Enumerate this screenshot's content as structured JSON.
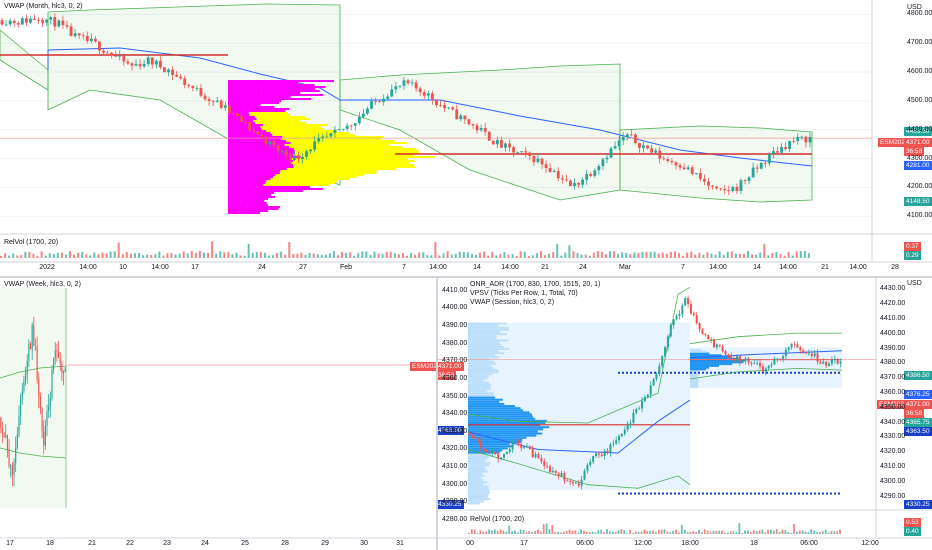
{
  "colors": {
    "up": "#26a69a",
    "down": "#ef5350",
    "vwap": "#2962ff",
    "band": "#4caf50",
    "vp_up": "#ffff00",
    "vp_down": "#ff00ff",
    "vpsv_light": "#bbdefb",
    "vpsv_dark": "#2196f3",
    "poc": "#d32f2f",
    "blue_dots": "#1a3fc7",
    "grid": "#f0f3fa",
    "badge_red": "#ef5350",
    "badge_green": "#26a69a",
    "badge_blue": "#2962ff",
    "badge_dark": "#131722"
  },
  "top": {
    "indicator": "VWAP (Month, hlc3, 0, 2)",
    "currency": "USD",
    "y_ticks": [
      "4800.00",
      "4700.00",
      "4600.00",
      "4500.00",
      "4400.00",
      "4300.00",
      "4200.00",
      "4100.00"
    ],
    "x_ticks": [
      "2022",
      "14:00",
      "10",
      "14:00",
      "17",
      "24",
      "27",
      "Feb",
      "7",
      "14:00",
      "14",
      "14:00",
      "21",
      "24",
      "Mar",
      "7",
      "14:00",
      "14",
      "14:00",
      "21",
      "14:00",
      "28"
    ],
    "badges": {
      "band_upper": "4453.50",
      "symbol": "ESM2022",
      "price": "4371.00",
      "countdown": "36:58",
      "vwap": "4281.00",
      "band_lower": "4148.50"
    },
    "relvol": {
      "label": "RelVol (1700, 20)",
      "value_red": "0.37",
      "value_green": "0.29"
    }
  },
  "bottom_left": {
    "indicator": "VWAP (Week, hlc3, 0, 2)",
    "x_ticks": [
      "17",
      "18",
      "21",
      "22",
      "23",
      "24",
      "25",
      "28",
      "29",
      "30",
      "31"
    ]
  },
  "bottom_right": {
    "indicators": [
      "ONR_ADR (1700, 830, 1700, 1515, 20, 1)",
      "VPSV (Ticks Per Row, 1, Total, 70)",
      "VWAP (Session, hlc3, 0, 2)"
    ],
    "currency": "USD",
    "y_ticks_left": [
      "4410.00",
      "4400.00",
      "4390.00",
      "4380.00",
      "4370.00",
      "4360.00",
      "4350.00",
      "4340.00",
      "4330.00",
      "4320.00",
      "4310.00",
      "4300.00",
      "4290.00",
      "4280.00"
    ],
    "y_ticks_right": [
      "4430.00",
      "4420.00",
      "4410.00",
      "4400.00",
      "4390.00",
      "4380.00",
      "4370.00",
      "4360.00",
      "4350.00",
      "4340.00",
      "4330.00",
      "4320.00",
      "4310.00",
      "4300.00",
      "4290.00"
    ],
    "x_ticks": [
      "00",
      "17",
      "06:00",
      "12:00",
      "18:00",
      "18",
      "06:00",
      "12:00"
    ],
    "left_badges": {
      "symbol": "ESM2022",
      "price": "4371.00",
      "countdown": "36:58"
    },
    "badges": {
      "band_upper": "4386.50",
      "vwap": "4376.25",
      "symbol": "ESM2022",
      "price": "4371.00",
      "countdown": "36:58",
      "band_lower": "4365.75",
      "dots": "4363.50",
      "bottom_dots": "4330.25"
    },
    "relvol": {
      "label": "RelVol (1700, 20)",
      "value_red": "0.53",
      "value_green": "0.40"
    }
  },
  "chart_data": [
    {
      "type": "candlestick",
      "title": "VWAP (Month, hlc3, 0, 2)",
      "ylim": [
        4080,
        4850
      ],
      "approx_close": [
        4780,
        4775,
        4790,
        4770,
        4720,
        4700,
        4660,
        4620,
        4640,
        4610,
        4560,
        4520,
        4480,
        4430,
        4380,
        4330,
        4300,
        4350,
        4380,
        4420,
        4480,
        4530,
        4560,
        4530,
        4480,
        4440,
        4400,
        4350,
        4320,
        4300,
        4260,
        4200,
        4250,
        4320,
        4380,
        4340,
        4300,
        4280,
        4230,
        4180,
        4200,
        4260,
        4320,
        4360,
        4371
      ],
      "vwap_start": 4790,
      "vwap_end": 4281,
      "poc": 4360
    },
    {
      "type": "candlestick",
      "title": "VWAP (Week, hlc3, 0, 2)",
      "approx_close": [
        4340,
        4300,
        4360,
        4400,
        4320,
        4380,
        4371
      ]
    },
    {
      "type": "candlestick",
      "title": "VWAP (Session, hlc3, 0, 2)",
      "ylim": [
        4280,
        4415
      ],
      "approx_close": [
        4330,
        4320,
        4315,
        4325,
        4318,
        4310,
        4305,
        4300,
        4315,
        4320,
        4330,
        4345,
        4360,
        4390,
        4405,
        4385,
        4378,
        4372,
        4370,
        4366,
        4372,
        4380,
        4375,
        4368,
        4371
      ],
      "poc_1": 4334,
      "poc_2": 4371,
      "dots_level": 4363.5,
      "bottom_dots_level": 4330.25
    }
  ]
}
